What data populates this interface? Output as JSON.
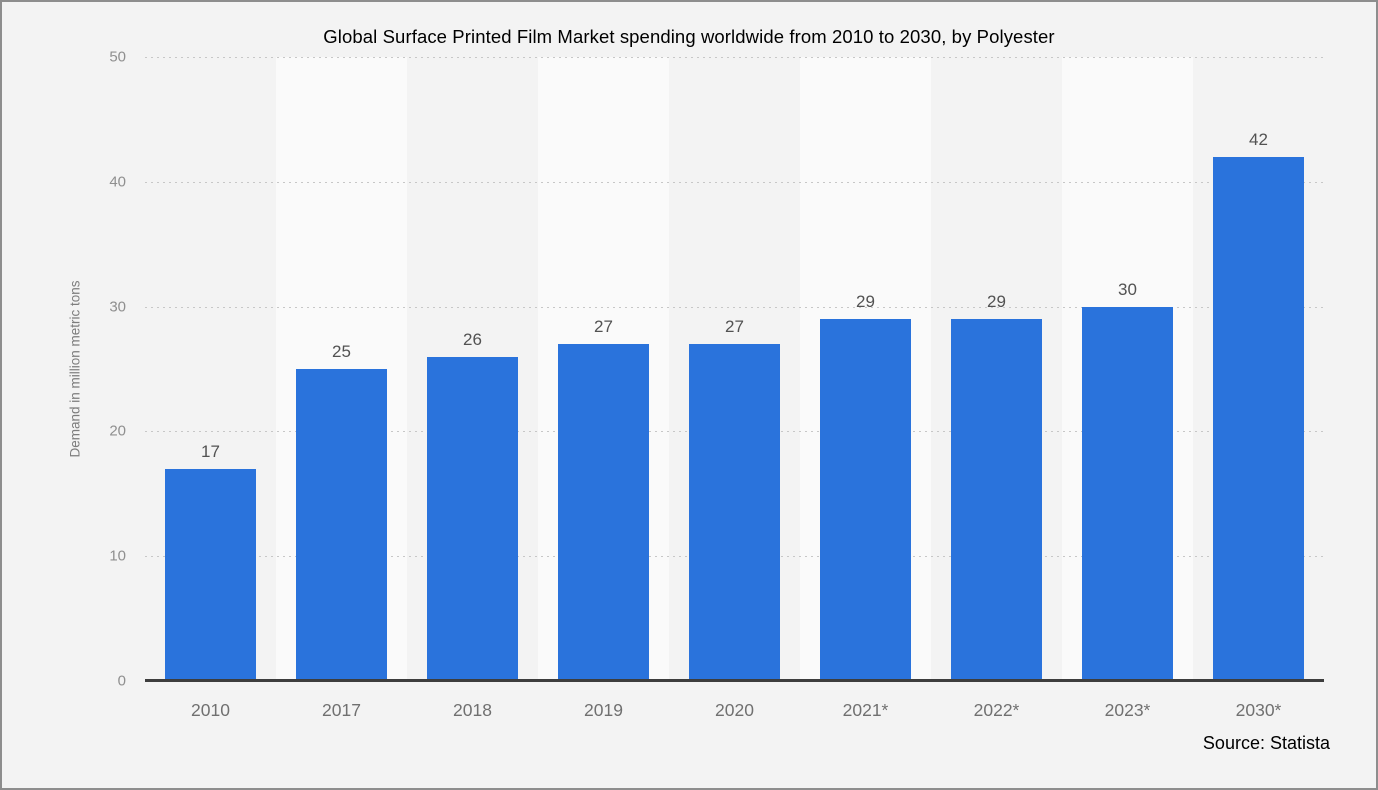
{
  "page": {
    "source": "Source: Statista"
  },
  "chart_data": {
    "type": "bar",
    "title": "Global Surface Printed Film Market spending worldwide from 2010 to 2030, by Polyester",
    "categories": [
      "2010",
      "2017",
      "2018",
      "2019",
      "2020",
      "2021*",
      "2022*",
      "2023*",
      "2030*"
    ],
    "values": [
      17,
      25,
      26,
      27,
      27,
      29,
      29,
      30,
      42
    ],
    "xlabel": "",
    "ylabel": "Demand in million metric tons",
    "ylim": [
      0,
      50
    ],
    "yticks": [
      0,
      10,
      20,
      30,
      40,
      50
    ],
    "grid": "horizontal-dotted",
    "legend": "none",
    "value_labels_shown": true,
    "colors": {
      "bar": "#2a73dc",
      "background": "#f3f3f3",
      "band_alternate": "#fafafa",
      "gridline": "#c7c7c7",
      "axis_line": "#3d3d3d",
      "ytick_text": "#8f8f8f",
      "category_text": "#707070",
      "value_text": "#525252",
      "title_text": "#000000",
      "ylabel_text": "#7d7d7d",
      "source_text": "#000000",
      "frame_border": "#8d8d8d"
    }
  }
}
